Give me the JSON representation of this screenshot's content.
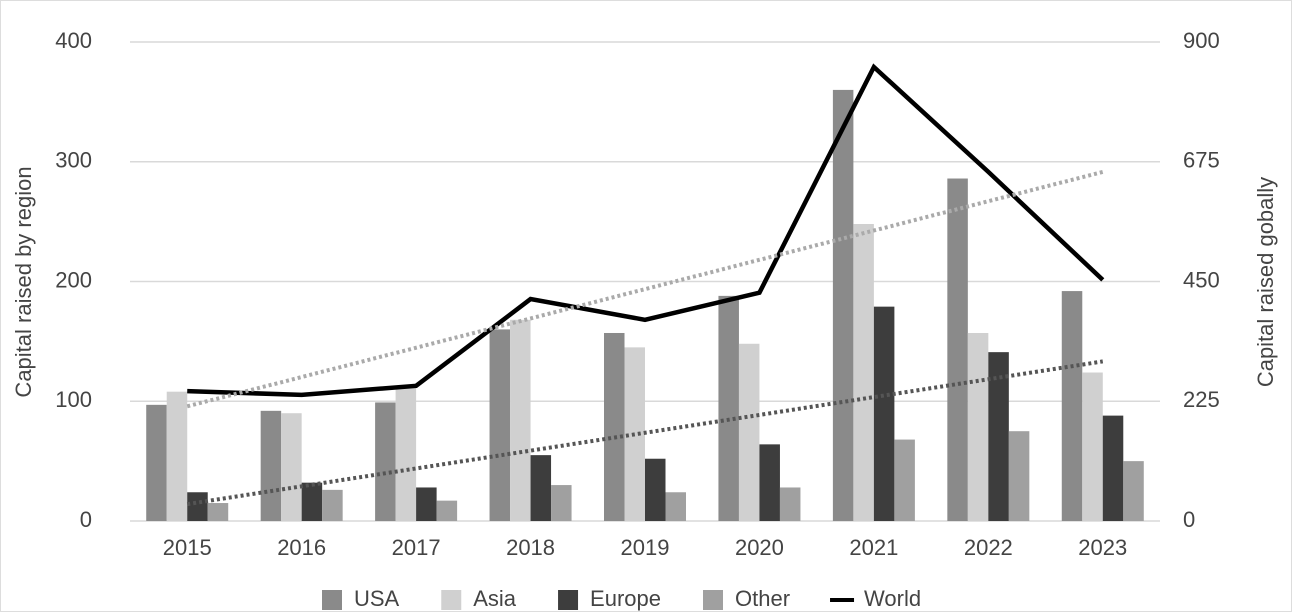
{
  "chart_data": {
    "type": "bar",
    "categories": [
      "2015",
      "2016",
      "2017",
      "2018",
      "2019",
      "2020",
      "2021",
      "2022",
      "2023"
    ],
    "ylabel": "Capital raised by region",
    "y2label": "Capital raised gobally",
    "ylim": [
      0,
      400
    ],
    "yticks": [
      0,
      100,
      200,
      300,
      400
    ],
    "y2lim": [
      0,
      900
    ],
    "y2ticks": [
      0,
      225,
      450,
      675,
      900
    ],
    "grid": true,
    "legend": "bottom",
    "series": [
      {
        "name": "USA",
        "type": "bar",
        "color": "#8a8a8a",
        "values": [
          97,
          92,
          99,
          160,
          157,
          188,
          360,
          286,
          192
        ]
      },
      {
        "name": "Asia",
        "type": "bar",
        "color": "#d0d0d0",
        "values": [
          108,
          90,
          111,
          168,
          145,
          148,
          248,
          157,
          124
        ]
      },
      {
        "name": "Europe",
        "type": "bar",
        "color": "#3d3d3d",
        "trendline": "#555555",
        "values": [
          24,
          32,
          28,
          55,
          52,
          64,
          179,
          141,
          88
        ]
      },
      {
        "name": "Other",
        "type": "bar",
        "color": "#a0a0a0",
        "values": [
          15,
          26,
          17,
          30,
          24,
          28,
          68,
          75,
          50
        ]
      },
      {
        "name": "World",
        "type": "line",
        "axis": "y2",
        "color": "#000000",
        "trendline": "#aaaaaa",
        "values": [
          244,
          237,
          254,
          417,
          378,
          429,
          853,
          656,
          453
        ]
      }
    ]
  }
}
